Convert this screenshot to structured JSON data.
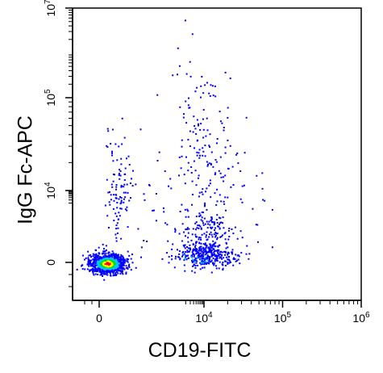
{
  "chart_data": {
    "type": "scatter",
    "style": "density-dot-plot",
    "xlabel": "CD19-FITC",
    "ylabel": "IgG Fc-APC",
    "x_scale": "biexponential",
    "y_scale": "biexponential",
    "xlim": [
      -400,
      1000000
    ],
    "ylim": [
      -400,
      10000000
    ],
    "x_tick_labels": [
      {
        "value": 0,
        "label": "0"
      },
      {
        "value": 10000,
        "label": "10",
        "exp": "4"
      },
      {
        "value": 100000,
        "label": "10",
        "exp": "5"
      },
      {
        "value": 1000000,
        "label": "10",
        "exp": "6"
      }
    ],
    "y_tick_labels": [
      {
        "value": 0,
        "label": "0"
      },
      {
        "value": 10000,
        "label": "10",
        "exp": "4"
      },
      {
        "value": 100000,
        "label": "10",
        "exp": "5"
      },
      {
        "value": 10000000,
        "label": "10",
        "exp": "7"
      }
    ],
    "grid": false,
    "density_colors": [
      "#0000ff",
      "#00c8ff",
      "#00e000",
      "#ffff00",
      "#ff0000"
    ],
    "populations": [
      {
        "name": "",
        "x_center": 100,
        "y_center": 0,
        "count": "very high",
        "peak_color": "#ff0000"
      },
      {
        "name": "",
        "x_center": 12000,
        "y_center": 100,
        "count": "high",
        "peak_color": "#0000ff"
      },
      {
        "name": "",
        "x_center": 300,
        "y_center": 12000,
        "count": "low",
        "peak_color": "#0000ff"
      },
      {
        "name": "",
        "x_center": 15000,
        "y_center": 80000,
        "count": "low",
        "peak_color": "#0000ff"
      }
    ]
  }
}
